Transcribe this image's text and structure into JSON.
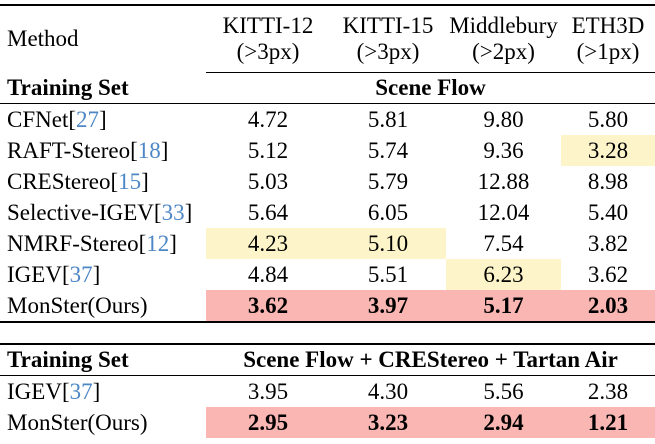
{
  "table": {
    "colors": {
      "best": "#f9b6b2",
      "second": "#fdf5c9",
      "citation": "#4d87c6"
    },
    "header": {
      "method_label": "Method",
      "columns": [
        {
          "name": "KITTI-12",
          "threshold": "(>3px)"
        },
        {
          "name": "KITTI-15",
          "threshold": "(>3px)"
        },
        {
          "name": "Middlebury",
          "threshold": "(>2px)"
        },
        {
          "name": "ETH3D",
          "threshold": "(>1px)"
        }
      ]
    },
    "sections": [
      {
        "training_set_label": "Training Set",
        "training_set_value": "Scene Flow",
        "rows": [
          {
            "method": "CFNet",
            "cite": "27",
            "values": [
              "4.72",
              "5.81",
              "9.80",
              "5.80"
            ],
            "highlight": [
              "",
              "",
              "",
              ""
            ],
            "bold_values": false
          },
          {
            "method": "RAFT-Stereo",
            "cite": "18",
            "values": [
              "5.12",
              "5.74",
              "9.36",
              "3.28"
            ],
            "highlight": [
              "",
              "",
              "",
              "second"
            ],
            "bold_values": false
          },
          {
            "method": "CREStereo",
            "cite": "15",
            "values": [
              "5.03",
              "5.79",
              "12.88",
              "8.98"
            ],
            "highlight": [
              "",
              "",
              "",
              ""
            ],
            "bold_values": false
          },
          {
            "method": "Selective-IGEV",
            "cite": "33",
            "values": [
              "5.64",
              "6.05",
              "12.04",
              "5.40"
            ],
            "highlight": [
              "",
              "",
              "",
              ""
            ],
            "bold_values": false
          },
          {
            "method": "NMRF-Stereo",
            "cite": "12",
            "values": [
              "4.23",
              "5.10",
              "7.54",
              "3.82"
            ],
            "highlight": [
              "second",
              "second",
              "",
              ""
            ],
            "bold_values": false
          },
          {
            "method": "IGEV",
            "cite": "37",
            "values": [
              "4.84",
              "5.51",
              "6.23",
              "3.62"
            ],
            "highlight": [
              "",
              "",
              "second",
              ""
            ],
            "bold_values": false
          },
          {
            "method": "MonSter(Ours)",
            "cite": null,
            "values": [
              "3.62",
              "3.97",
              "5.17",
              "2.03"
            ],
            "highlight": [
              "best",
              "best",
              "best",
              "best"
            ],
            "bold_values": true
          }
        ]
      },
      {
        "training_set_label": "Training Set",
        "training_set_value": "Scene Flow + CREStereo + Tartan Air",
        "rows": [
          {
            "method": "IGEV",
            "cite": "37",
            "values": [
              "3.95",
              "4.30",
              "5.56",
              "2.38"
            ],
            "highlight": [
              "",
              "",
              "",
              ""
            ],
            "bold_values": false
          },
          {
            "method": "MonSter(Ours)",
            "cite": null,
            "values": [
              "2.95",
              "3.23",
              "2.94",
              "1.21"
            ],
            "highlight": [
              "best",
              "best",
              "best",
              "best"
            ],
            "bold_values": true
          }
        ]
      }
    ]
  }
}
